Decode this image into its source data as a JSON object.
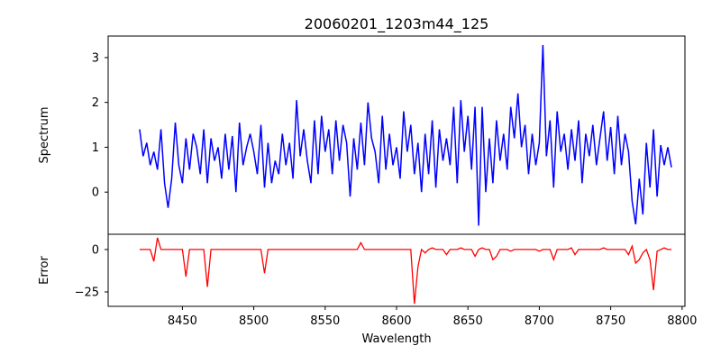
{
  "chart_data": [
    {
      "type": "line",
      "title": "20060201_1203m44_125",
      "xlabel": "",
      "ylabel": "Spectrum",
      "color": "#0000ff",
      "xlim": [
        8398,
        8802
      ],
      "ylim": [
        -0.94,
        3.48
      ],
      "yticks": [
        0,
        1,
        2,
        3
      ],
      "ytick_labels": [
        "0",
        "1",
        "2",
        "3"
      ],
      "x_start": 8420,
      "x_step": 2.5,
      "values": [
        1.4,
        0.8,
        1.1,
        0.6,
        0.9,
        0.5,
        1.4,
        0.2,
        -0.35,
        0.3,
        1.55,
        0.6,
        0.2,
        1.2,
        0.5,
        1.3,
        1.0,
        0.4,
        1.4,
        0.2,
        1.2,
        0.7,
        1.0,
        0.3,
        1.3,
        0.5,
        1.25,
        0.0,
        1.55,
        0.6,
        1.0,
        1.3,
        0.9,
        0.4,
        1.5,
        0.1,
        1.1,
        0.2,
        0.7,
        0.4,
        1.3,
        0.6,
        1.1,
        0.3,
        2.05,
        0.8,
        1.4,
        0.7,
        0.2,
        1.6,
        0.4,
        1.7,
        0.9,
        1.4,
        0.4,
        1.6,
        0.7,
        1.5,
        1.1,
        -0.1,
        1.2,
        0.5,
        1.55,
        0.6,
        2.0,
        1.2,
        0.9,
        0.2,
        1.7,
        0.5,
        1.3,
        0.6,
        1.0,
        0.3,
        1.8,
        0.9,
        1.5,
        0.4,
        1.1,
        0.0,
        1.3,
        0.4,
        1.6,
        0.1,
        1.4,
        0.7,
        1.2,
        0.6,
        1.9,
        0.2,
        2.05,
        0.9,
        1.7,
        0.5,
        1.9,
        -0.75,
        1.9,
        0.0,
        1.2,
        0.2,
        1.6,
        0.7,
        1.3,
        0.5,
        1.9,
        1.2,
        2.2,
        1.0,
        1.5,
        0.4,
        1.3,
        0.6,
        1.1,
        3.28,
        0.8,
        1.6,
        0.1,
        1.8,
        0.9,
        1.3,
        0.5,
        1.4,
        0.7,
        1.6,
        0.2,
        1.3,
        0.8,
        1.5,
        0.6,
        1.2,
        1.8,
        0.7,
        1.45,
        0.4,
        1.7,
        0.6,
        1.3,
        0.9,
        -0.2,
        -0.72,
        0.3,
        -0.5,
        1.1,
        0.1,
        1.4,
        -0.1,
        1.05,
        0.6,
        1.0,
        0.55
      ]
    },
    {
      "type": "line",
      "xlabel": "Wavelength",
      "ylabel": "Error",
      "color": "#ff0000",
      "xlim": [
        8398,
        8802
      ],
      "ylim": [
        -33.5,
        9
      ],
      "yticks": [
        0,
        -25
      ],
      "ytick_labels": [
        "0",
        "−25"
      ],
      "xticks": [
        8450,
        8500,
        8550,
        8600,
        8650,
        8700,
        8750,
        8800
      ],
      "xtick_labels": [
        "8450",
        "8500",
        "8550",
        "8600",
        "8650",
        "8700",
        "8750",
        "8800"
      ],
      "x_start": 8420,
      "x_step": 2.5,
      "count": 150,
      "baseline": 0,
      "nonzero": [
        [
          8430,
          -7
        ],
        [
          8432.5,
          7
        ],
        [
          8452.5,
          -16
        ],
        [
          8467.5,
          -22
        ],
        [
          8507.5,
          -14
        ],
        [
          8575,
          4
        ],
        [
          8612.5,
          -32
        ],
        [
          8615,
          -10
        ],
        [
          8620,
          -2
        ],
        [
          8625,
          1
        ],
        [
          8635,
          -3
        ],
        [
          8645,
          1
        ],
        [
          8655,
          -4
        ],
        [
          8660,
          1
        ],
        [
          8667.5,
          -6
        ],
        [
          8670,
          -4
        ],
        [
          8680,
          -1
        ],
        [
          8700,
          -1
        ],
        [
          8710,
          -6
        ],
        [
          8722.5,
          1
        ],
        [
          8725,
          -3
        ],
        [
          8745,
          1
        ],
        [
          8762.5,
          -3
        ],
        [
          8765,
          2
        ],
        [
          8767.5,
          -8
        ],
        [
          8770,
          -6
        ],
        [
          8772.5,
          -2
        ],
        [
          8777.5,
          -6
        ],
        [
          8780,
          -24
        ],
        [
          8782.5,
          -1
        ],
        [
          8787.5,
          1
        ]
      ]
    }
  ]
}
